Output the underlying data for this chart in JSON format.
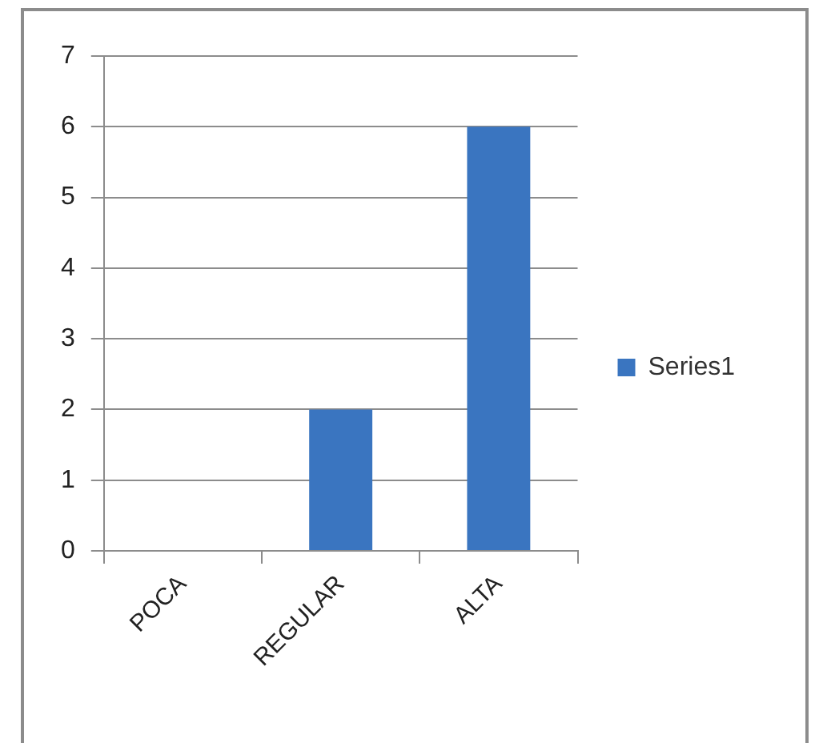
{
  "chart_data": {
    "type": "bar",
    "categories": [
      "POCA",
      "REGULAR",
      "ALTA"
    ],
    "series": [
      {
        "name": "Series1",
        "color": "#3a75c0",
        "values": [
          0,
          2,
          6
        ]
      }
    ],
    "ylim": [
      0,
      7
    ],
    "yticks": [
      0,
      1,
      2,
      3,
      4,
      5,
      6,
      7
    ],
    "grid": "y",
    "legend": "right"
  }
}
